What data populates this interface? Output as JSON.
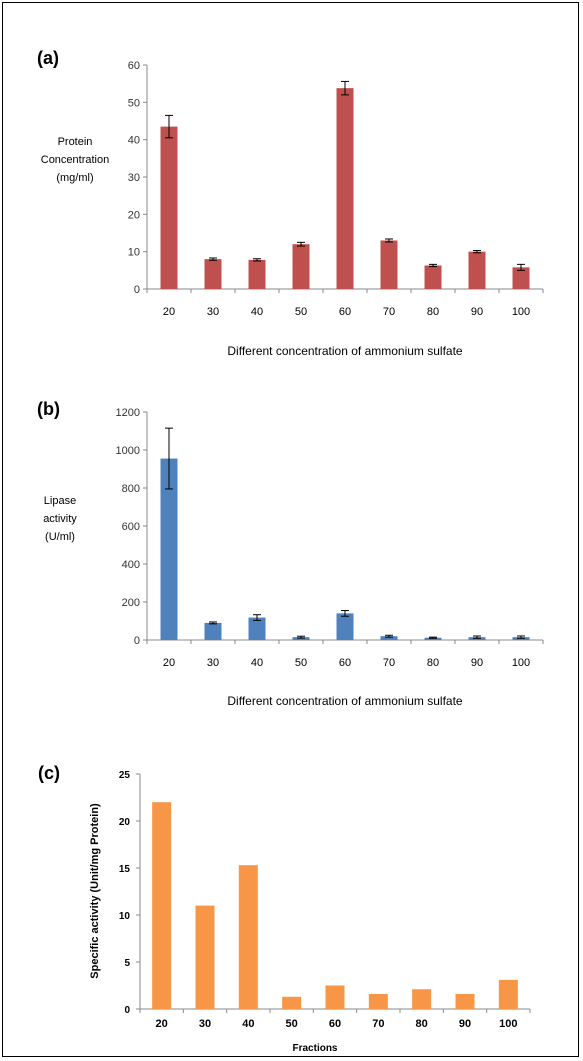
{
  "chart_data": [
    {
      "panel": "(a)",
      "type": "bar",
      "categories": [
        "20",
        "30",
        "40",
        "50",
        "60",
        "70",
        "80",
        "90",
        "100"
      ],
      "values": [
        43.5,
        8,
        7.8,
        12,
        53.8,
        13,
        6.3,
        10,
        5.8
      ],
      "errors": [
        3,
        0.3,
        0.3,
        0.5,
        1.8,
        0.4,
        0.3,
        0.3,
        0.8
      ],
      "ylabel": [
        "Protein",
        "Concentration",
        "(mg/ml)"
      ],
      "xlabel": "Different concentration of ammonium sulfate",
      "ylim": [
        0,
        60
      ],
      "yticks": [
        0,
        10,
        20,
        30,
        40,
        50,
        60
      ],
      "bar_color": "#c0504d",
      "grid": false
    },
    {
      "panel": "(b)",
      "type": "bar",
      "categories": [
        "20",
        "30",
        "40",
        "50",
        "60",
        "70",
        "80",
        "90",
        "100"
      ],
      "values": [
        955,
        90,
        118,
        15,
        140,
        20,
        12,
        15,
        15
      ],
      "errors": [
        160,
        5,
        15,
        5,
        15,
        5,
        3,
        6,
        6
      ],
      "ylabel": [
        "Lipase",
        "activity",
        "(U/ml)"
      ],
      "xlabel": "Different concentration of ammonium sulfate",
      "ylim": [
        0,
        1200
      ],
      "yticks": [
        0,
        200,
        400,
        600,
        800,
        1000,
        1200
      ],
      "bar_color": "#4f81bd",
      "grid": false
    },
    {
      "panel": "(c)",
      "type": "bar",
      "categories": [
        "20",
        "30",
        "40",
        "50",
        "60",
        "70",
        "80",
        "90",
        "100"
      ],
      "values": [
        22,
        11,
        15.3,
        1.3,
        2.5,
        1.6,
        2.1,
        1.6,
        3.1
      ],
      "ylabel": [
        "Specific activity (Unit/mg Protein)"
      ],
      "xlabel": "Fractions",
      "ylim": [
        0,
        25
      ],
      "yticks": [
        0,
        5,
        10,
        15,
        20,
        25
      ],
      "bar_color": "#f79646",
      "grid": false
    }
  ]
}
